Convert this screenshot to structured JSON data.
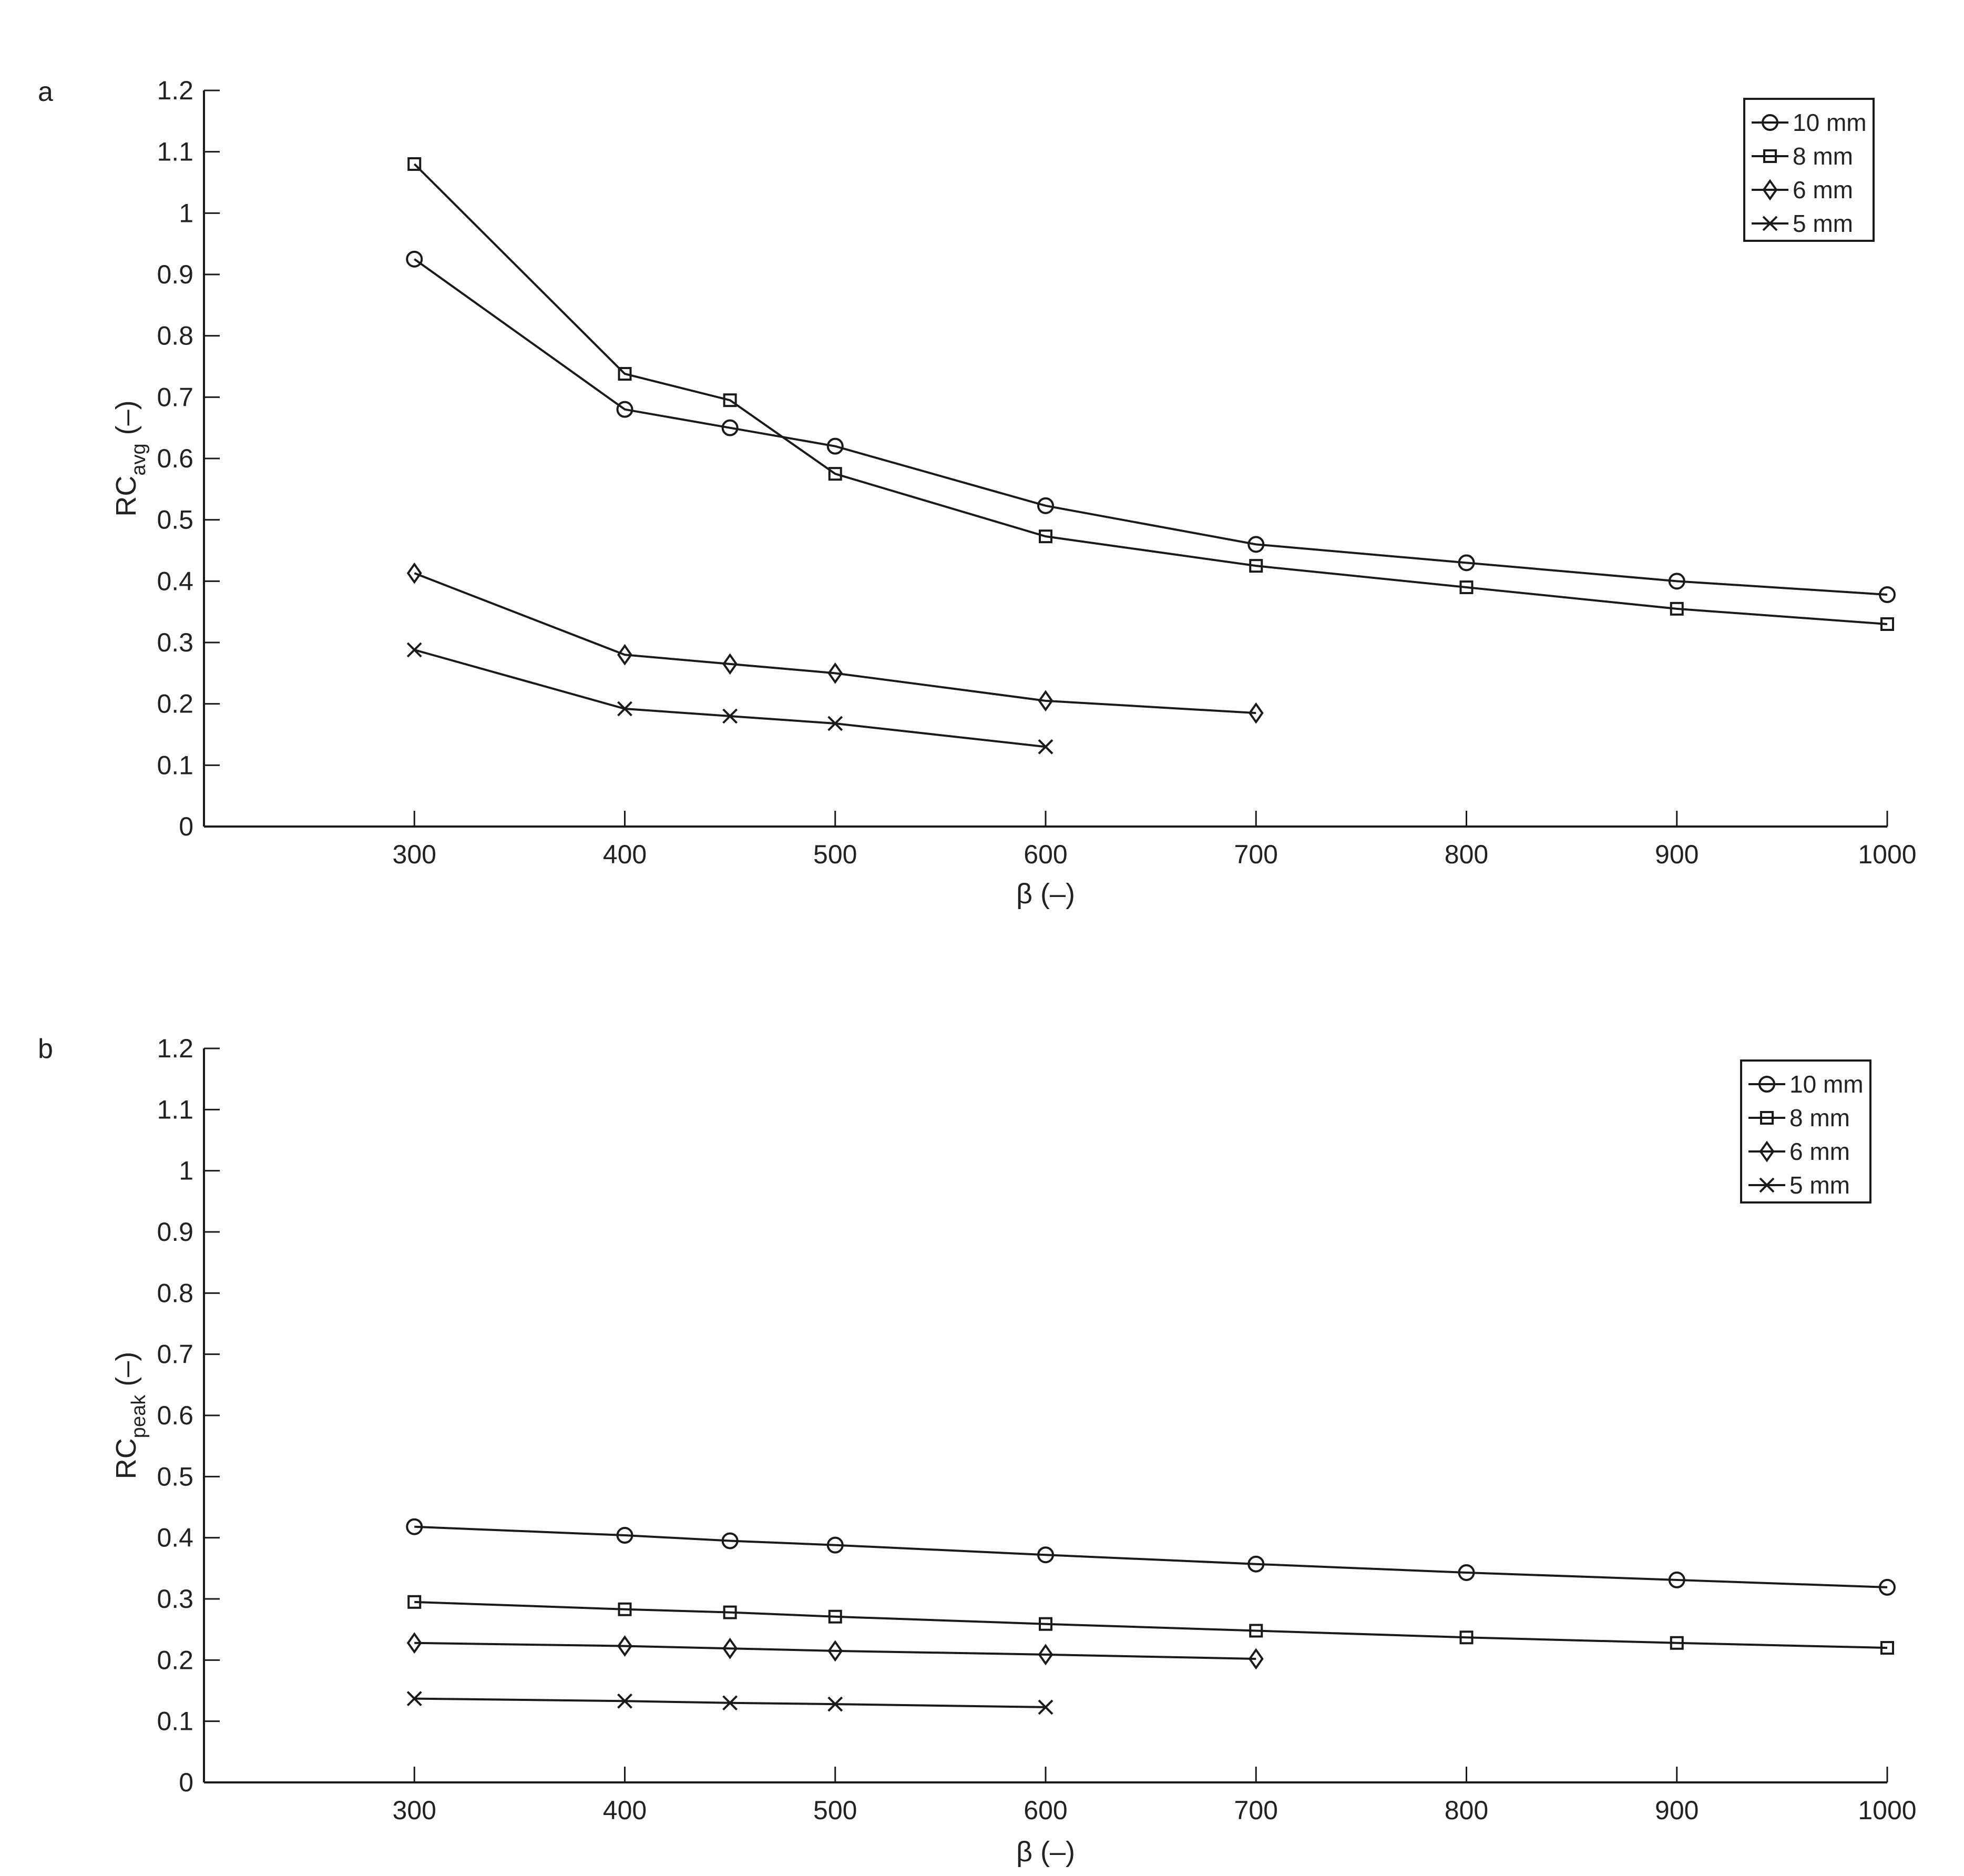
{
  "figure": {
    "background": "#ffffff",
    "line_color": "#1a1a1a"
  },
  "chart_data": [
    {
      "panel_label": "a",
      "type": "line",
      "xlabel": "β (–)",
      "ylabel_main": "RC",
      "ylabel_sub": "avg",
      "ylabel_unit": "(–)",
      "xlim": [
        200,
        1000
      ],
      "ylim": [
        0,
        1.2
      ],
      "xticks": [
        300,
        400,
        500,
        600,
        700,
        800,
        900,
        1000
      ],
      "xtick_labels": [
        "300",
        "400",
        "500",
        "600",
        "700",
        "800",
        "900",
        "1000"
      ],
      "yticks": [
        0,
        0.1,
        0.2,
        0.3,
        0.4,
        0.5,
        0.6,
        0.7,
        0.8,
        0.9,
        1.0,
        1.1,
        1.2
      ],
      "ytick_labels": [
        "0",
        "0.1",
        "0.2",
        "0.3",
        "0.4",
        "0.5",
        "0.6",
        "0.7",
        "0.8",
        "0.9",
        "1",
        "1.1",
        "1.2"
      ],
      "grid": false,
      "legend_position": "top-right",
      "series": [
        {
          "name": "10 mm",
          "marker": "circle",
          "x": [
            300,
            400,
            450,
            500,
            600,
            700,
            800,
            900,
            1000
          ],
          "y": [
            0.925,
            0.68,
            0.65,
            0.62,
            0.523,
            0.46,
            0.43,
            0.4,
            0.378
          ]
        },
        {
          "name": "8 mm",
          "marker": "square",
          "x": [
            300,
            400,
            450,
            500,
            600,
            700,
            800,
            900,
            1000
          ],
          "y": [
            1.08,
            0.738,
            0.695,
            0.575,
            0.473,
            0.425,
            0.39,
            0.355,
            0.33
          ]
        },
        {
          "name": "6 mm",
          "marker": "diamond",
          "x": [
            300,
            400,
            450,
            500,
            600,
            700
          ],
          "y": [
            0.413,
            0.28,
            0.265,
            0.25,
            0.205,
            0.185
          ]
        },
        {
          "name": "5 mm",
          "marker": "x",
          "x": [
            300,
            400,
            450,
            500,
            600
          ],
          "y": [
            0.288,
            0.192,
            0.18,
            0.168,
            0.13
          ]
        }
      ]
    },
    {
      "panel_label": "b",
      "type": "line",
      "xlabel": "β (–)",
      "ylabel_main": "RC",
      "ylabel_sub": "peak",
      "ylabel_unit": "(–)",
      "xlim": [
        200,
        1000
      ],
      "ylim": [
        0,
        1.2
      ],
      "xticks": [
        300,
        400,
        500,
        600,
        700,
        800,
        900,
        1000
      ],
      "xtick_labels": [
        "300",
        "400",
        "500",
        "600",
        "700",
        "800",
        "900",
        "1000"
      ],
      "yticks": [
        0,
        0.1,
        0.2,
        0.3,
        0.4,
        0.5,
        0.6,
        0.7,
        0.8,
        0.9,
        1.0,
        1.1,
        1.2
      ],
      "ytick_labels": [
        "0",
        "0.1",
        "0.2",
        "0.3",
        "0.4",
        "0.5",
        "0.6",
        "0.7",
        "0.8",
        "0.9",
        "1",
        "1.1",
        "1.2"
      ],
      "grid": false,
      "legend_position": "top-right",
      "series": [
        {
          "name": "10 mm",
          "marker": "circle",
          "x": [
            300,
            400,
            450,
            500,
            600,
            700,
            800,
            900,
            1000
          ],
          "y": [
            0.418,
            0.404,
            0.395,
            0.388,
            0.372,
            0.357,
            0.343,
            0.331,
            0.319
          ]
        },
        {
          "name": "8 mm",
          "marker": "square",
          "x": [
            300,
            400,
            450,
            500,
            600,
            700,
            800,
            900,
            1000
          ],
          "y": [
            0.295,
            0.283,
            0.278,
            0.271,
            0.259,
            0.248,
            0.237,
            0.228,
            0.22
          ]
        },
        {
          "name": "6 mm",
          "marker": "diamond",
          "x": [
            300,
            400,
            450,
            500,
            600,
            700
          ],
          "y": [
            0.228,
            0.223,
            0.219,
            0.215,
            0.209,
            0.202
          ]
        },
        {
          "name": "5 mm",
          "marker": "x",
          "x": [
            300,
            400,
            450,
            500,
            600
          ],
          "y": [
            0.137,
            0.133,
            0.13,
            0.128,
            0.123
          ]
        }
      ]
    }
  ]
}
